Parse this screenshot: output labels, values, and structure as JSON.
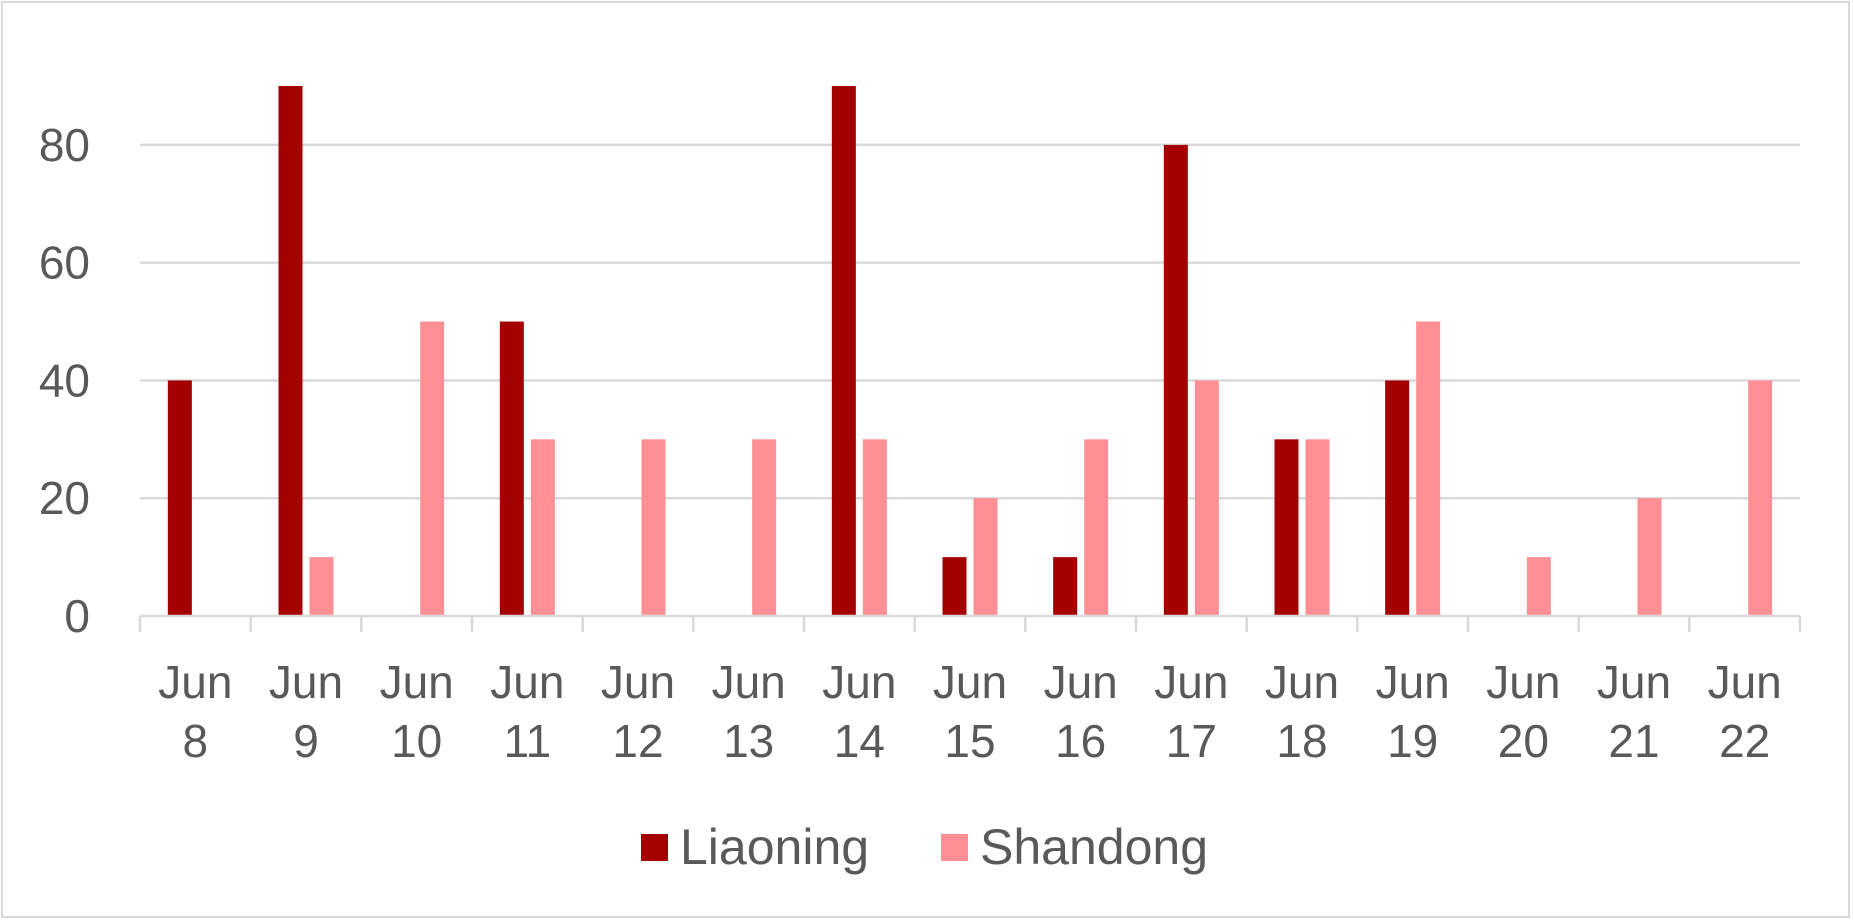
{
  "chart_data": {
    "type": "bar",
    "title": "",
    "xlabel": "",
    "ylabel": "",
    "categories": [
      "Jun 8",
      "Jun 9",
      "Jun 10",
      "Jun 11",
      "Jun 12",
      "Jun 13",
      "Jun 14",
      "Jun 15",
      "Jun 16",
      "Jun 17",
      "Jun 18",
      "Jun 19",
      "Jun 20",
      "Jun 21",
      "Jun 22"
    ],
    "category_lines": [
      [
        "Jun",
        "8"
      ],
      [
        "Jun",
        "9"
      ],
      [
        "Jun",
        "10"
      ],
      [
        "Jun",
        "11"
      ],
      [
        "Jun",
        "12"
      ],
      [
        "Jun",
        "13"
      ],
      [
        "Jun",
        "14"
      ],
      [
        "Jun",
        "15"
      ],
      [
        "Jun",
        "16"
      ],
      [
        "Jun",
        "17"
      ],
      [
        "Jun",
        "18"
      ],
      [
        "Jun",
        "19"
      ],
      [
        "Jun",
        "20"
      ],
      [
        "Jun",
        "21"
      ],
      [
        "Jun",
        "22"
      ]
    ],
    "series": [
      {
        "name": "Liaoning",
        "color": "#a50000",
        "values": [
          40,
          90,
          0,
          50,
          0,
          0,
          90,
          10,
          10,
          80,
          30,
          40,
          0,
          0,
          0
        ]
      },
      {
        "name": "Shandong",
        "color": "#ff8f94",
        "values": [
          0,
          10,
          50,
          30,
          30,
          30,
          30,
          20,
          30,
          40,
          30,
          50,
          10,
          20,
          40
        ]
      }
    ],
    "ylim": [
      0,
      90
    ],
    "yticks": [
      0,
      20,
      40,
      60,
      80
    ],
    "grid": true,
    "legend_position": "bottom"
  }
}
